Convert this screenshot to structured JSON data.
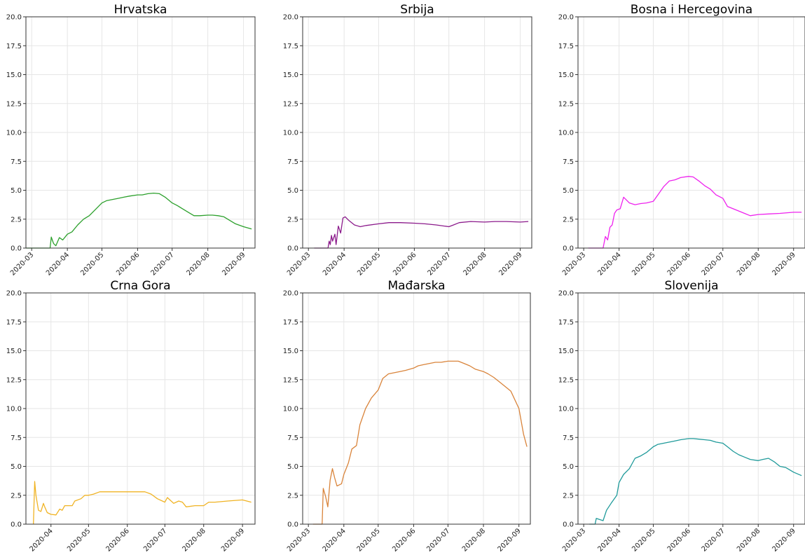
{
  "chart_data": [
    {
      "type": "line",
      "title": "Hrvatska",
      "color": "#2ca02c",
      "ylim": [
        0,
        20
      ],
      "yticks": [
        "0.0",
        "2.5",
        "5.0",
        "7.5",
        "10.0",
        "12.5",
        "15.0",
        "17.5",
        "20.0"
      ],
      "xticks": [
        "2020-03",
        "2020-04",
        "2020-05",
        "2020-06",
        "2020-07",
        "2020-08",
        "2020-09"
      ],
      "xlim": [
        "2020-02-25",
        "2020-09-11"
      ],
      "grid": true,
      "x": [
        "2020-02-25",
        "2020-03-17",
        "2020-03-18",
        "2020-03-20",
        "2020-03-22",
        "2020-03-25",
        "2020-03-28",
        "2020-04-01",
        "2020-04-05",
        "2020-04-10",
        "2020-04-15",
        "2020-04-20",
        "2020-04-25",
        "2020-05-01",
        "2020-05-05",
        "2020-05-10",
        "2020-05-15",
        "2020-05-20",
        "2020-05-25",
        "2020-06-01",
        "2020-06-05",
        "2020-06-10",
        "2020-06-15",
        "2020-06-20",
        "2020-06-25",
        "2020-07-01",
        "2020-07-05",
        "2020-07-10",
        "2020-07-15",
        "2020-07-20",
        "2020-07-25",
        "2020-08-01",
        "2020-08-05",
        "2020-08-10",
        "2020-08-15",
        "2020-08-20",
        "2020-08-25",
        "2020-09-01",
        "2020-09-08"
      ],
      "y": [
        0.0,
        0.0,
        0.95,
        0.4,
        0.2,
        0.9,
        0.7,
        1.2,
        1.4,
        2.0,
        2.5,
        2.8,
        3.3,
        3.9,
        4.1,
        4.2,
        4.3,
        4.4,
        4.5,
        4.6,
        4.6,
        4.7,
        4.75,
        4.7,
        4.4,
        3.9,
        3.7,
        3.4,
        3.1,
        2.8,
        2.8,
        2.85,
        2.85,
        2.8,
        2.7,
        2.4,
        2.1,
        1.85,
        1.65
      ]
    },
    {
      "type": "line",
      "title": "Srbija",
      "color": "#8b1a8b",
      "ylim": [
        0,
        20
      ],
      "yticks": [
        "0.0",
        "2.5",
        "5.0",
        "7.5",
        "10.0",
        "12.5",
        "15.0",
        "17.5",
        "20.0"
      ],
      "xticks": [
        "2020-03",
        "2020-04",
        "2020-05",
        "2020-06",
        "2020-07",
        "2020-08",
        "2020-09"
      ],
      "xlim": [
        "2020-02-25",
        "2020-09-11"
      ],
      "grid": true,
      "x": [
        "2020-03-06",
        "2020-03-18",
        "2020-03-19",
        "2020-03-20",
        "2020-03-21",
        "2020-03-22",
        "2020-03-24",
        "2020-03-25",
        "2020-03-27",
        "2020-03-29",
        "2020-03-31",
        "2020-04-02",
        "2020-04-05",
        "2020-04-10",
        "2020-04-15",
        "2020-04-20",
        "2020-05-01",
        "2020-05-10",
        "2020-05-20",
        "2020-06-01",
        "2020-06-10",
        "2020-06-20",
        "2020-07-01",
        "2020-07-05",
        "2020-07-10",
        "2020-07-20",
        "2020-08-01",
        "2020-08-10",
        "2020-08-20",
        "2020-09-01",
        "2020-09-08"
      ],
      "y": [
        0.0,
        0.0,
        0.6,
        0.3,
        1.1,
        0.6,
        1.2,
        0.3,
        1.9,
        1.3,
        2.6,
        2.7,
        2.4,
        2.0,
        1.85,
        1.95,
        2.1,
        2.2,
        2.2,
        2.15,
        2.1,
        2.0,
        1.85,
        2.0,
        2.2,
        2.3,
        2.25,
        2.3,
        2.3,
        2.25,
        2.3
      ]
    },
    {
      "type": "line",
      "title": "Bosna i Hercegovina",
      "color": "#ee22ee",
      "ylim": [
        0,
        20
      ],
      "yticks": [
        "0.0",
        "2.5",
        "5.0",
        "7.5",
        "10.0",
        "12.5",
        "15.0",
        "17.5",
        "20.0"
      ],
      "xticks": [
        "2020-03",
        "2020-04",
        "2020-05",
        "2020-06",
        "2020-07",
        "2020-08",
        "2020-09"
      ],
      "xlim": [
        "2020-02-25",
        "2020-09-11"
      ],
      "grid": true,
      "x": [
        "2020-03-05",
        "2020-03-18",
        "2020-03-20",
        "2020-03-22",
        "2020-03-24",
        "2020-03-26",
        "2020-03-28",
        "2020-03-30",
        "2020-04-02",
        "2020-04-05",
        "2020-04-10",
        "2020-04-15",
        "2020-04-20",
        "2020-04-25",
        "2020-05-01",
        "2020-05-05",
        "2020-05-10",
        "2020-05-15",
        "2020-05-20",
        "2020-05-25",
        "2020-06-01",
        "2020-06-05",
        "2020-06-10",
        "2020-06-15",
        "2020-06-20",
        "2020-06-25",
        "2020-07-01",
        "2020-07-05",
        "2020-07-10",
        "2020-07-20",
        "2020-07-25",
        "2020-08-01",
        "2020-08-10",
        "2020-08-20",
        "2020-09-01",
        "2020-09-08"
      ],
      "y": [
        0.0,
        0.0,
        1.0,
        0.7,
        1.8,
        2.0,
        3.0,
        3.3,
        3.4,
        4.4,
        3.9,
        3.75,
        3.85,
        3.9,
        4.05,
        4.6,
        5.3,
        5.8,
        5.9,
        6.1,
        6.2,
        6.15,
        5.8,
        5.4,
        5.1,
        4.6,
        4.3,
        3.6,
        3.4,
        3.0,
        2.8,
        2.9,
        2.95,
        3.0,
        3.1,
        3.1
      ]
    },
    {
      "type": "line",
      "title": "Crna Gora",
      "color": "#f0b323",
      "ylim": [
        0,
        20
      ],
      "yticks": [
        "0.0",
        "2.5",
        "5.0",
        "7.5",
        "10.0",
        "12.5",
        "15.0",
        "17.5",
        "20.0"
      ],
      "xticks": [
        "2020-04",
        "2020-05",
        "2020-06",
        "2020-07",
        "2020-08",
        "2020-09"
      ],
      "xlim": [
        "2020-03-12",
        "2020-09-11"
      ],
      "grid": true,
      "x": [
        "2020-03-18",
        "2020-03-19",
        "2020-03-20",
        "2020-03-22",
        "2020-03-24",
        "2020-03-26",
        "2020-03-27",
        "2020-03-29",
        "2020-04-01",
        "2020-04-05",
        "2020-04-08",
        "2020-04-10",
        "2020-04-12",
        "2020-04-15",
        "2020-04-18",
        "2020-04-20",
        "2020-04-25",
        "2020-04-28",
        "2020-05-01",
        "2020-05-05",
        "2020-05-10",
        "2020-06-01",
        "2020-06-10",
        "2020-06-15",
        "2020-06-20",
        "2020-06-25",
        "2020-07-01",
        "2020-07-03",
        "2020-07-05",
        "2020-07-08",
        "2020-07-12",
        "2020-07-15",
        "2020-07-18",
        "2020-07-25",
        "2020-08-01",
        "2020-08-05",
        "2020-08-10",
        "2020-08-20",
        "2020-09-01",
        "2020-09-08"
      ],
      "y": [
        0.0,
        3.7,
        2.5,
        1.2,
        1.1,
        1.8,
        1.5,
        1.0,
        0.85,
        0.8,
        1.3,
        1.2,
        1.6,
        1.6,
        1.6,
        2.0,
        2.2,
        2.5,
        2.5,
        2.6,
        2.8,
        2.8,
        2.8,
        2.8,
        2.6,
        2.2,
        1.9,
        2.3,
        2.1,
        1.8,
        2.0,
        1.9,
        1.5,
        1.6,
        1.6,
        1.9,
        1.9,
        2.0,
        2.1,
        1.9
      ]
    },
    {
      "type": "line",
      "title": "Mađarska",
      "color": "#d9843b",
      "ylim": [
        0,
        20
      ],
      "yticks": [
        "0.0",
        "2.5",
        "5.0",
        "7.5",
        "10.0",
        "12.5",
        "15.0",
        "17.5",
        "20.0"
      ],
      "xticks": [
        "2020-03",
        "2020-04",
        "2020-05",
        "2020-06",
        "2020-07",
        "2020-08",
        "2020-09"
      ],
      "xlim": [
        "2020-02-25",
        "2020-09-11"
      ],
      "grid": true,
      "x": [
        "2020-03-05",
        "2020-03-13",
        "2020-03-14",
        "2020-03-16",
        "2020-03-18",
        "2020-03-20",
        "2020-03-22",
        "2020-03-24",
        "2020-03-26",
        "2020-03-28",
        "2020-03-30",
        "2020-04-01",
        "2020-04-03",
        "2020-04-05",
        "2020-04-08",
        "2020-04-12",
        "2020-04-15",
        "2020-04-20",
        "2020-04-25",
        "2020-05-01",
        "2020-05-05",
        "2020-05-10",
        "2020-05-15",
        "2020-05-20",
        "2020-05-25",
        "2020-06-01",
        "2020-06-05",
        "2020-06-10",
        "2020-06-15",
        "2020-06-20",
        "2020-06-25",
        "2020-07-01",
        "2020-07-05",
        "2020-07-10",
        "2020-07-15",
        "2020-07-20",
        "2020-07-25",
        "2020-08-01",
        "2020-08-05",
        "2020-08-10",
        "2020-08-15",
        "2020-08-20",
        "2020-08-25",
        "2020-09-01",
        "2020-09-05",
        "2020-09-08"
      ],
      "y": [
        0.0,
        0.0,
        3.1,
        2.4,
        1.5,
        3.8,
        4.8,
        4.0,
        3.3,
        3.4,
        3.5,
        4.3,
        4.8,
        5.3,
        6.5,
        6.8,
        8.6,
        10.0,
        10.9,
        11.6,
        12.6,
        13.0,
        13.1,
        13.2,
        13.3,
        13.5,
        13.7,
        13.8,
        13.9,
        14.0,
        14.0,
        14.1,
        14.1,
        14.1,
        13.9,
        13.7,
        13.4,
        13.2,
        13.0,
        12.7,
        12.3,
        11.9,
        11.5,
        10.0,
        7.8,
        6.7
      ]
    },
    {
      "type": "line",
      "title": "Slovenija",
      "color": "#1f9a9a",
      "ylim": [
        0,
        20
      ],
      "yticks": [
        "0.0",
        "2.5",
        "5.0",
        "7.5",
        "10.0",
        "12.5",
        "15.0",
        "17.5",
        "20.0"
      ],
      "xticks": [
        "2020-03",
        "2020-04",
        "2020-05",
        "2020-06",
        "2020-07",
        "2020-08",
        "2020-09"
      ],
      "xlim": [
        "2020-02-25",
        "2020-09-11"
      ],
      "grid": true,
      "x": [
        "2020-03-06",
        "2020-03-11",
        "2020-03-12",
        "2020-03-15",
        "2020-03-18",
        "2020-03-21",
        "2020-03-25",
        "2020-03-30",
        "2020-04-01",
        "2020-04-05",
        "2020-04-10",
        "2020-04-15",
        "2020-04-20",
        "2020-04-25",
        "2020-05-01",
        "2020-05-05",
        "2020-05-10",
        "2020-05-15",
        "2020-05-20",
        "2020-05-25",
        "2020-06-01",
        "2020-06-05",
        "2020-06-10",
        "2020-06-15",
        "2020-06-20",
        "2020-06-25",
        "2020-07-01",
        "2020-07-05",
        "2020-07-10",
        "2020-07-15",
        "2020-07-20",
        "2020-07-25",
        "2020-08-01",
        "2020-08-05",
        "2020-08-10",
        "2020-08-15",
        "2020-08-20",
        "2020-08-25",
        "2020-09-01",
        "2020-09-08"
      ],
      "y": [
        0.0,
        0.0,
        0.5,
        0.4,
        0.3,
        1.2,
        1.8,
        2.5,
        3.6,
        4.3,
        4.8,
        5.7,
        5.9,
        6.2,
        6.7,
        6.9,
        7.0,
        7.1,
        7.2,
        7.3,
        7.4,
        7.4,
        7.35,
        7.3,
        7.25,
        7.1,
        7.0,
        6.7,
        6.3,
        6.0,
        5.8,
        5.6,
        5.5,
        5.6,
        5.7,
        5.4,
        5.0,
        4.9,
        4.5,
        4.2
      ]
    }
  ]
}
